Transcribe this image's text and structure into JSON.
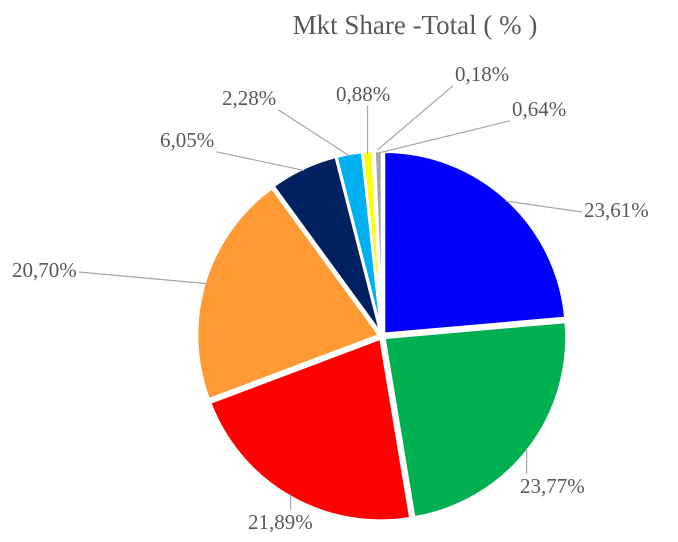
{
  "chart_data": {
    "type": "pie",
    "title": "Mkt Share -Total ( % )",
    "values": [
      23.61,
      23.77,
      21.89,
      20.7,
      6.05,
      2.28,
      0.88,
      0.18,
      0.64
    ],
    "value_labels": [
      "23,61%",
      "23,77%",
      "21,89%",
      "20,70%",
      "6,05%",
      "2,28%",
      "0,88%",
      "0,18%",
      "0,64%"
    ],
    "colors": [
      "#0000ff",
      "#00b050",
      "#ff0000",
      "#ff9933",
      "#002060",
      "#00b0f0",
      "#ffff00",
      "#d9d9d9",
      "#a6a6a6"
    ]
  }
}
